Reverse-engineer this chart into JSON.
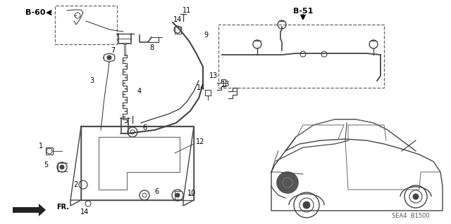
{
  "bg_color": "#ffffff",
  "label_B60": "B-60",
  "label_B51": "B-51",
  "label_SEA4": "SEA4  B1500",
  "label_FR": "FR.",
  "figsize": [
    6.4,
    3.19
  ],
  "dpi": 100,
  "line_color": "#444444",
  "dash_color": "#666666"
}
